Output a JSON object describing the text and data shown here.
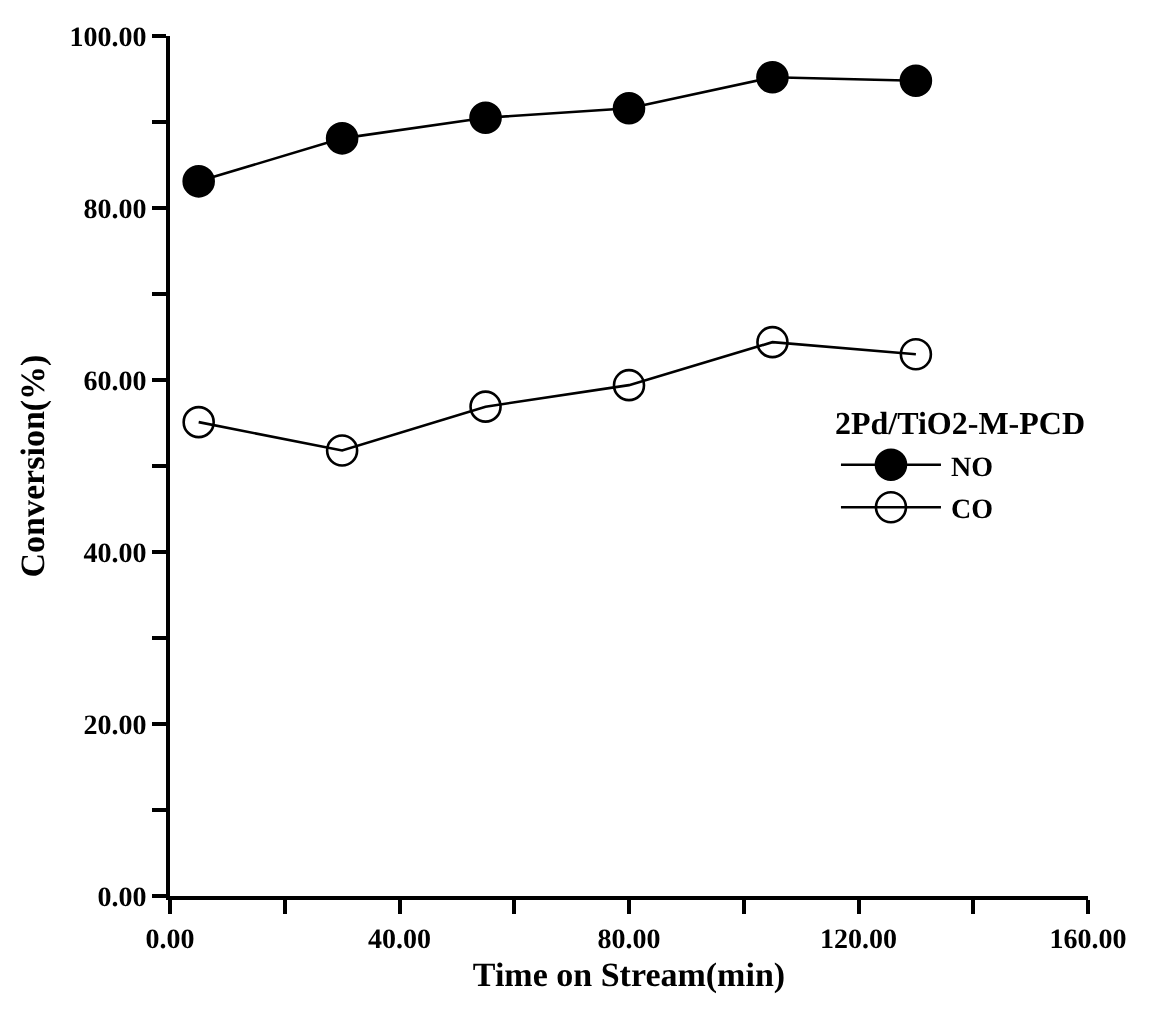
{
  "chart_data": {
    "type": "line",
    "xlabel": "Time on Stream(min)",
    "ylabel": "Conversion(%)",
    "legend_title": "2Pd/TiO2-M-PCD",
    "x": [
      5,
      30,
      55,
      80,
      105,
      130
    ],
    "series": [
      {
        "name": "NO",
        "color": "#000000",
        "marker": "circle",
        "values": [
          83.1,
          88.1,
          90.5,
          91.6,
          95.2,
          94.8
        ]
      },
      {
        "name": "CO",
        "color": "#000000",
        "marker": "circle-open",
        "values": [
          55.1,
          51.8,
          56.9,
          59.4,
          64.4,
          63.0
        ]
      }
    ],
    "xlim": [
      0,
      160
    ],
    "ylim": [
      0,
      100
    ],
    "xticks": [
      {
        "value": 0,
        "label": "0.00"
      },
      {
        "value": 20,
        "label": null
      },
      {
        "value": 40,
        "label": "40.00"
      },
      {
        "value": 60,
        "label": null
      },
      {
        "value": 80,
        "label": "80.00"
      },
      {
        "value": 100,
        "label": null
      },
      {
        "value": 120,
        "label": "120.00"
      },
      {
        "value": 140,
        "label": null
      },
      {
        "value": 160,
        "label": "160.00"
      }
    ],
    "yticks": [
      {
        "value": 0,
        "label": "0.00"
      },
      {
        "value": 10,
        "label": null
      },
      {
        "value": 20,
        "label": "20.00"
      },
      {
        "value": 30,
        "label": null
      },
      {
        "value": 40,
        "label": "40.00"
      },
      {
        "value": 50,
        "label": null
      },
      {
        "value": 60,
        "label": "60.00"
      },
      {
        "value": 70,
        "label": null
      },
      {
        "value": 80,
        "label": "80.00"
      },
      {
        "value": 90,
        "label": null
      },
      {
        "value": 100,
        "label": "100.00"
      }
    ],
    "grid": false,
    "legend": "right",
    "line_style": "solid"
  }
}
